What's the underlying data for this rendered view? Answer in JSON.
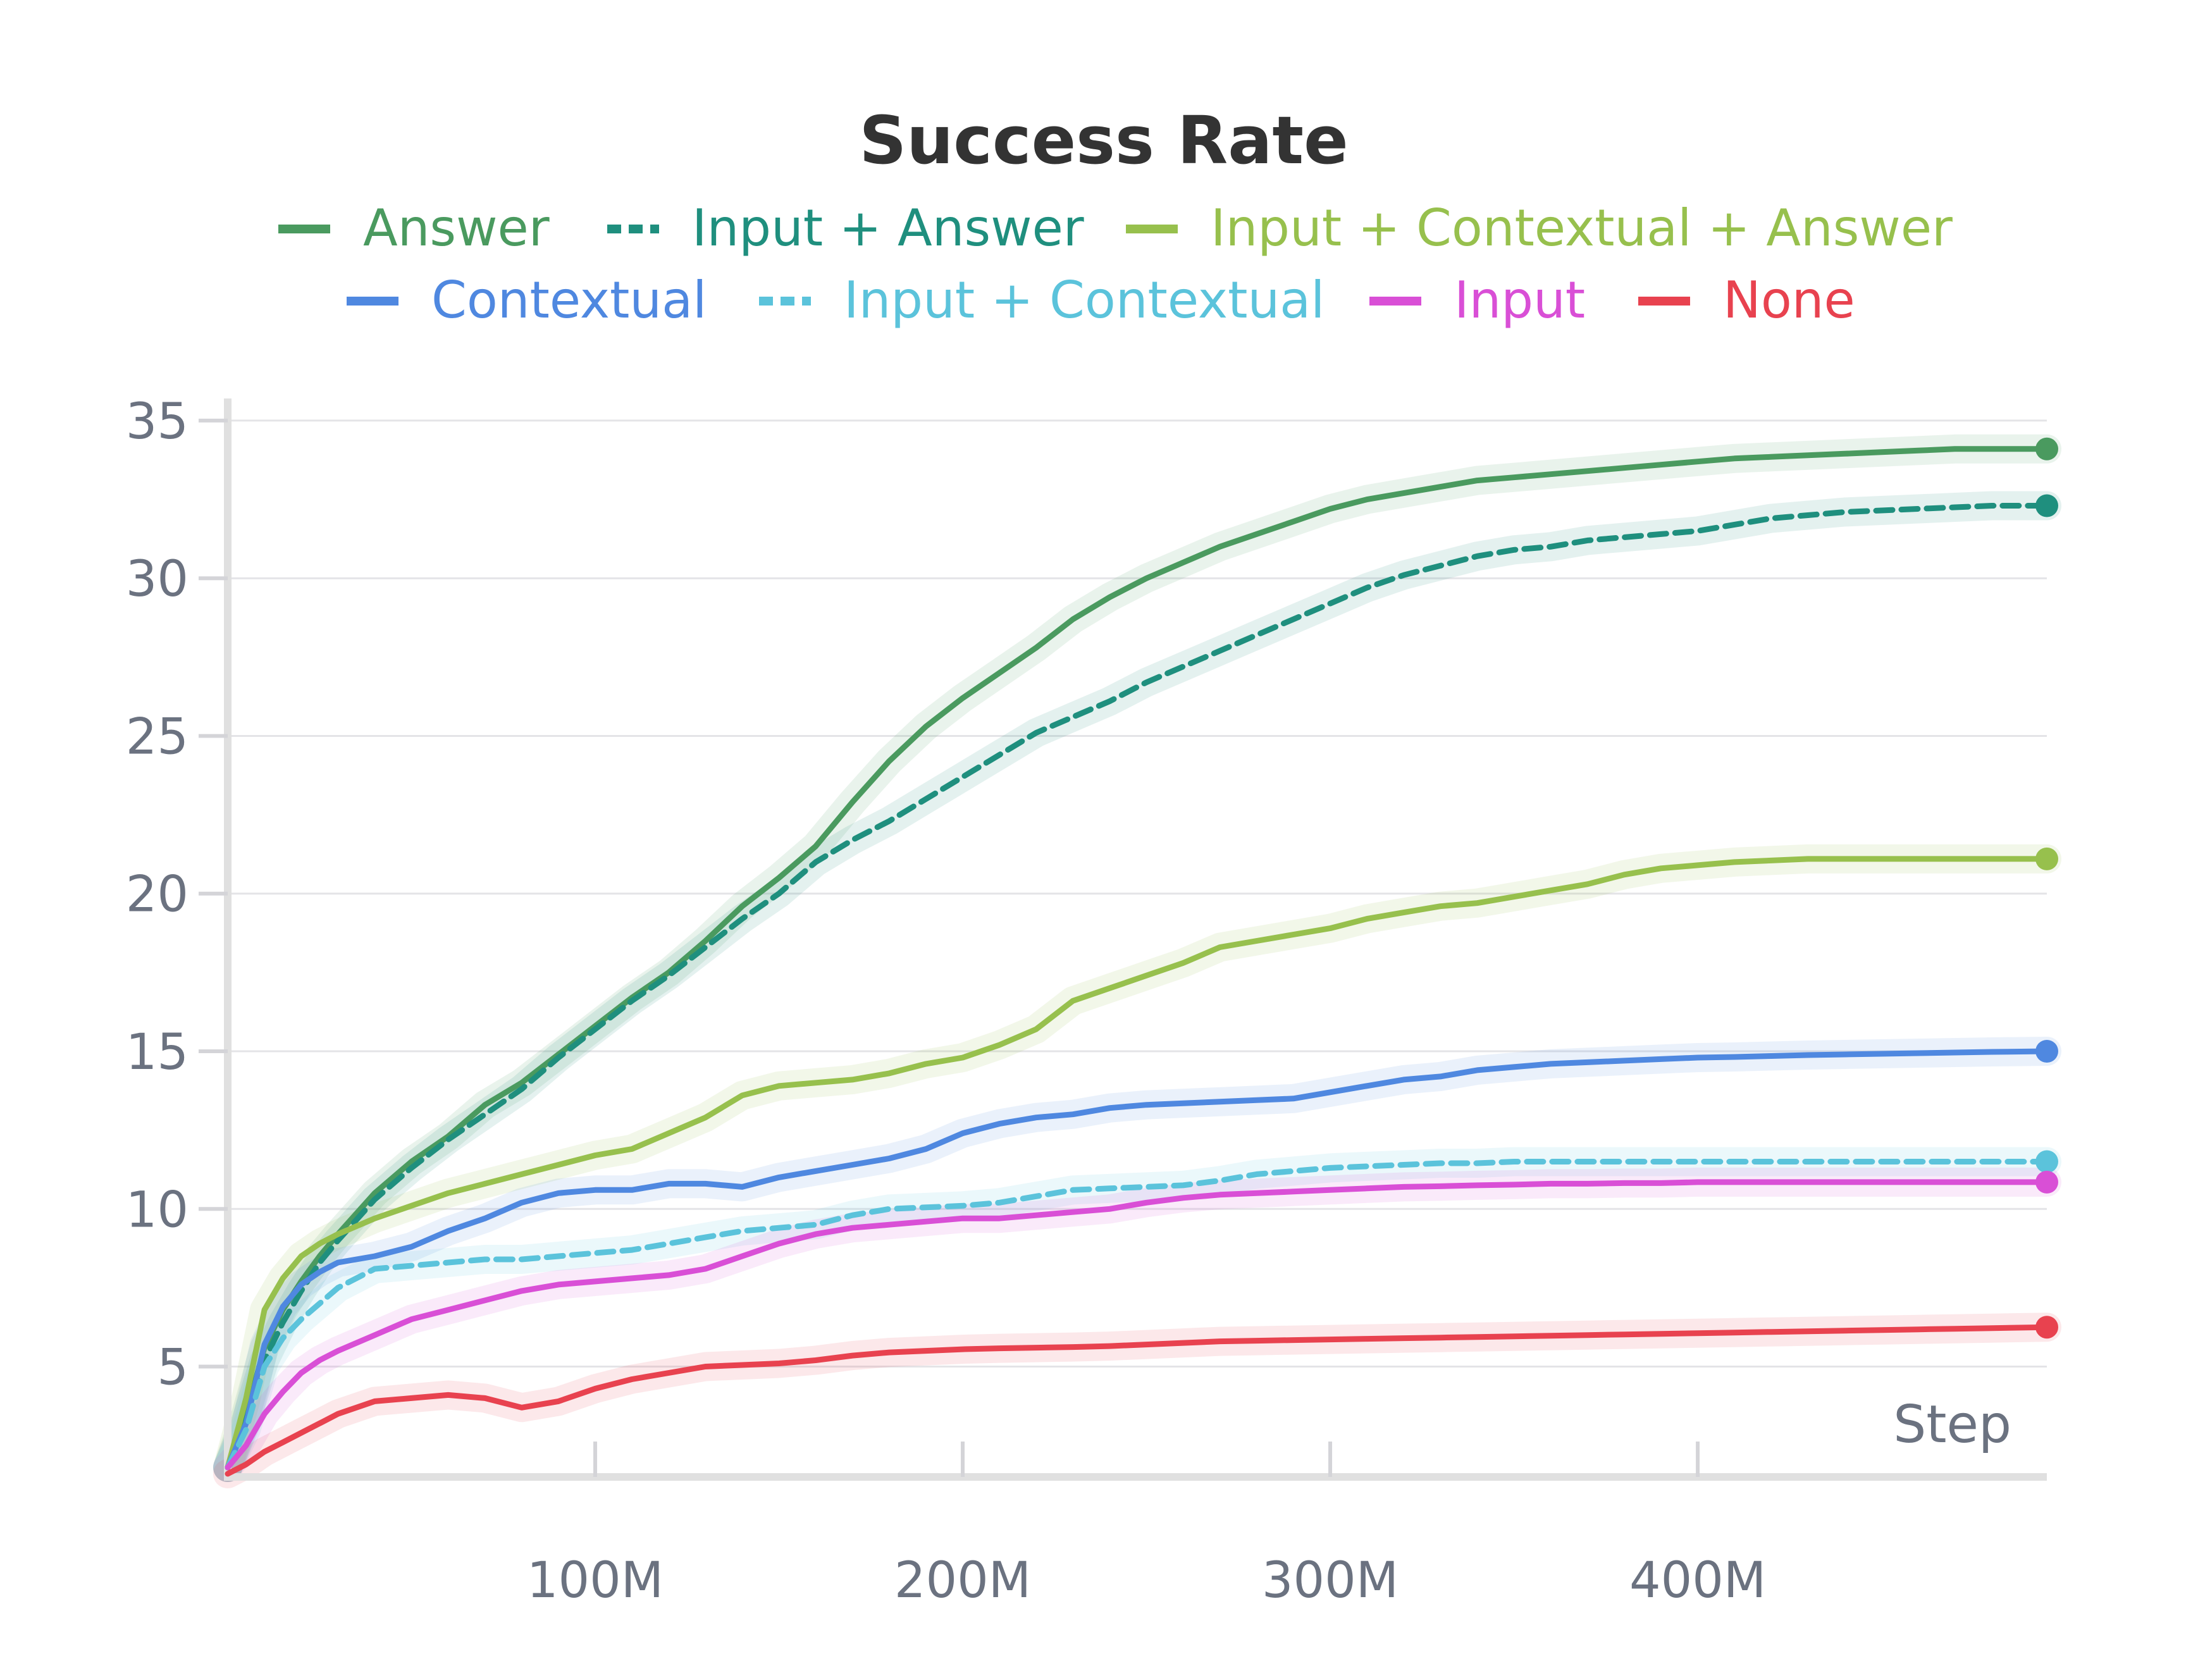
{
  "chart_data": {
    "type": "line",
    "title": "Success Rate",
    "xlabel": "Step",
    "ylabel": "",
    "xlim": [
      0,
      495
    ],
    "ylim": [
      1.5,
      35.5
    ],
    "x_ticks": [
      100,
      200,
      300,
      400
    ],
    "x_tick_labels": [
      "100M",
      "200M",
      "300M",
      "400M"
    ],
    "y_ticks": [
      5,
      10,
      15,
      20,
      25,
      30,
      35
    ],
    "y_tick_labels": [
      "5",
      "10",
      "15",
      "20",
      "25",
      "30",
      "35"
    ],
    "grid": true,
    "legend_position": "top",
    "x": [
      0,
      5,
      10,
      15,
      20,
      25,
      30,
      40,
      50,
      60,
      70,
      80,
      90,
      100,
      110,
      120,
      130,
      140,
      150,
      160,
      170,
      180,
      190,
      200,
      210,
      220,
      230,
      240,
      250,
      260,
      270,
      280,
      290,
      300,
      310,
      320,
      330,
      340,
      350,
      360,
      370,
      380,
      390,
      400,
      410,
      420,
      430,
      440,
      450,
      460,
      470,
      480,
      495
    ],
    "series": [
      {
        "name": "Answer",
        "color": "#4a9a5f",
        "dashed": false,
        "values": [
          1.8,
          3.5,
          5.6,
          6.8,
          7.7,
          8.5,
          9.2,
          10.5,
          11.5,
          12.3,
          13.3,
          14.0,
          14.9,
          15.8,
          16.7,
          17.5,
          18.5,
          19.6,
          20.5,
          21.5,
          22.9,
          24.2,
          25.3,
          26.2,
          27.0,
          27.8,
          28.7,
          29.4,
          30.0,
          30.5,
          31.0,
          31.4,
          31.8,
          32.2,
          32.5,
          32.7,
          32.9,
          33.1,
          33.2,
          33.3,
          33.4,
          33.5,
          33.6,
          33.7,
          33.8,
          33.85,
          33.9,
          33.95,
          34.0,
          34.05,
          34.1,
          34.1,
          34.1
        ],
        "end_value": 34.1
      },
      {
        "name": "Input + Answer",
        "color": "#1f8f7e",
        "dashed": true,
        "values": [
          1.8,
          3.3,
          5.2,
          6.4,
          7.4,
          8.3,
          9.0,
          10.3,
          11.3,
          12.2,
          13.0,
          13.8,
          14.8,
          15.7,
          16.6,
          17.4,
          18.3,
          19.2,
          20.0,
          21.0,
          21.7,
          22.3,
          23.0,
          23.7,
          24.4,
          25.1,
          25.6,
          26.1,
          26.7,
          27.2,
          27.7,
          28.2,
          28.7,
          29.2,
          29.7,
          30.1,
          30.4,
          30.7,
          30.9,
          31.0,
          31.2,
          31.3,
          31.4,
          31.5,
          31.7,
          31.9,
          32.0,
          32.1,
          32.15,
          32.2,
          32.25,
          32.3,
          32.3
        ],
        "end_value": 32.3
      },
      {
        "name": "Input + Contextual + Answer",
        "color": "#97c04d",
        "dashed": false,
        "values": [
          1.8,
          4.0,
          6.8,
          7.8,
          8.5,
          8.9,
          9.2,
          9.7,
          10.1,
          10.5,
          10.8,
          11.1,
          11.4,
          11.7,
          11.9,
          12.4,
          12.9,
          13.6,
          13.9,
          14.0,
          14.1,
          14.3,
          14.6,
          14.8,
          15.2,
          15.7,
          16.6,
          17.0,
          17.4,
          17.8,
          18.3,
          18.5,
          18.7,
          18.9,
          19.2,
          19.4,
          19.6,
          19.7,
          19.9,
          20.1,
          20.3,
          20.6,
          20.8,
          20.9,
          21.0,
          21.05,
          21.1,
          21.1,
          21.1,
          21.1,
          21.1,
          21.1,
          21.1
        ],
        "end_value": 21.1
      },
      {
        "name": "Contextual",
        "color": "#4f88e0",
        "dashed": false,
        "values": [
          1.8,
          3.2,
          5.7,
          6.9,
          7.6,
          8.0,
          8.3,
          8.5,
          8.8,
          9.3,
          9.7,
          10.2,
          10.5,
          10.6,
          10.6,
          10.8,
          10.8,
          10.7,
          11.0,
          11.2,
          11.4,
          11.6,
          11.9,
          12.4,
          12.7,
          12.9,
          13.0,
          13.2,
          13.3,
          13.35,
          13.4,
          13.45,
          13.5,
          13.7,
          13.9,
          14.1,
          14.2,
          14.4,
          14.5,
          14.6,
          14.65,
          14.7,
          14.75,
          14.8,
          14.82,
          14.85,
          14.88,
          14.9,
          14.92,
          14.94,
          14.96,
          14.98,
          15.0
        ],
        "end_value": 15.0
      },
      {
        "name": "Input + Contextual",
        "color": "#5bc3db",
        "dashed": true,
        "values": [
          1.8,
          3.0,
          5.0,
          5.9,
          6.5,
          7.0,
          7.5,
          8.1,
          8.2,
          8.3,
          8.4,
          8.4,
          8.5,
          8.6,
          8.7,
          8.9,
          9.1,
          9.3,
          9.4,
          9.5,
          9.8,
          10.0,
          10.05,
          10.1,
          10.2,
          10.4,
          10.6,
          10.65,
          10.7,
          10.75,
          10.9,
          11.1,
          11.2,
          11.3,
          11.35,
          11.4,
          11.45,
          11.45,
          11.5,
          11.5,
          11.5,
          11.5,
          11.5,
          11.5,
          11.5,
          11.5,
          11.5,
          11.5,
          11.5,
          11.5,
          11.5,
          11.5,
          11.5
        ],
        "end_value": 11.5
      },
      {
        "name": "Input",
        "color": "#d94fd6",
        "dashed": false,
        "values": [
          1.8,
          2.5,
          3.5,
          4.2,
          4.8,
          5.2,
          5.5,
          6.0,
          6.5,
          6.8,
          7.1,
          7.4,
          7.6,
          7.7,
          7.8,
          7.9,
          8.1,
          8.5,
          8.9,
          9.2,
          9.4,
          9.5,
          9.6,
          9.7,
          9.7,
          9.8,
          9.9,
          10.0,
          10.2,
          10.35,
          10.45,
          10.5,
          10.55,
          10.6,
          10.65,
          10.7,
          10.72,
          10.75,
          10.77,
          10.8,
          10.8,
          10.82,
          10.82,
          10.85,
          10.85,
          10.85,
          10.85,
          10.85,
          10.85,
          10.85,
          10.85,
          10.85,
          10.85
        ],
        "end_value": 10.85
      },
      {
        "name": "None",
        "color": "#e8424f",
        "dashed": false,
        "values": [
          1.6,
          1.9,
          2.3,
          2.6,
          2.9,
          3.2,
          3.5,
          3.9,
          4.0,
          4.1,
          4.0,
          3.7,
          3.9,
          4.3,
          4.6,
          4.8,
          5.0,
          5.05,
          5.1,
          5.2,
          5.35,
          5.45,
          5.5,
          5.55,
          5.58,
          5.6,
          5.62,
          5.65,
          5.7,
          5.75,
          5.8,
          5.82,
          5.84,
          5.86,
          5.88,
          5.9,
          5.92,
          5.94,
          5.96,
          5.98,
          6.0,
          6.02,
          6.04,
          6.06,
          6.08,
          6.1,
          6.12,
          6.14,
          6.16,
          6.18,
          6.2,
          6.22,
          6.25
        ],
        "end_value": 6.25
      }
    ]
  }
}
